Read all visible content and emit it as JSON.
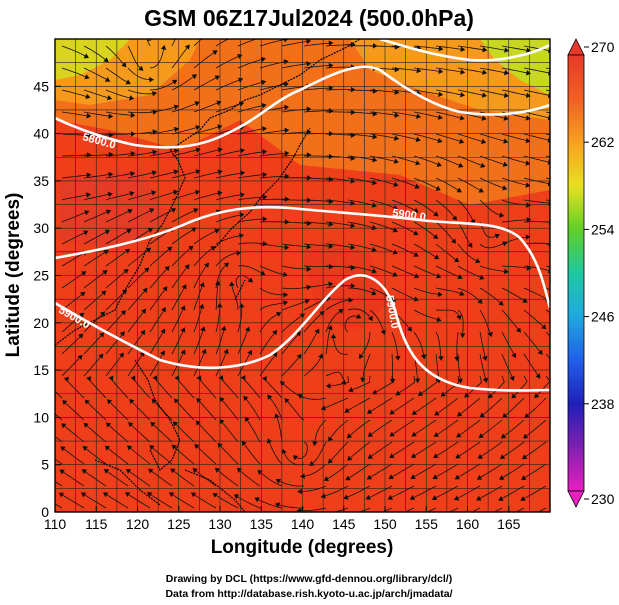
{
  "title": "GSM 06Z17Jul2024 (500.0hPa)",
  "map": {
    "x_axis": {
      "label": "Longitude (degrees)",
      "range": [
        110,
        170
      ],
      "ticks": [
        "110",
        "115",
        "120",
        "125",
        "130",
        "135",
        "140",
        "145",
        "150",
        "155",
        "160",
        "165"
      ]
    },
    "y_axis": {
      "label": "Latitude  (degrees)",
      "range": [
        0,
        50
      ],
      "ticks": [
        "0",
        "5",
        "10",
        "15",
        "20",
        "25",
        "30",
        "35",
        "40",
        "45"
      ]
    },
    "grid": true,
    "field": "temperature (K) with streamlines",
    "contour_labels": [
      "5800.0",
      "5900.0",
      "5900.0",
      "5900.0"
    ],
    "colors": {
      "dominant": "#f0401a",
      "warm_orange": "#f57f1a",
      "cool_yellow": "#d8e020",
      "contour": "#ffffff"
    }
  },
  "colorbar": {
    "ticks": [
      "270",
      "262",
      "254",
      "246",
      "238",
      "230"
    ],
    "range": [
      230,
      270
    ],
    "colors_top_to_bottom": [
      "#e83a2a",
      "#f06024",
      "#f8a020",
      "#e8e020",
      "#60d028",
      "#20c8a0",
      "#20a8e0",
      "#2060e8",
      "#2020b8",
      "#8020b0",
      "#e820c0"
    ]
  },
  "credits": {
    "line1": "Drawing by DCL (https://www.gfd-dennou.org/library/dcl/)",
    "line2": "Data from http://database.rish.kyoto-u.ac.jp/arch/jmadata/"
  }
}
